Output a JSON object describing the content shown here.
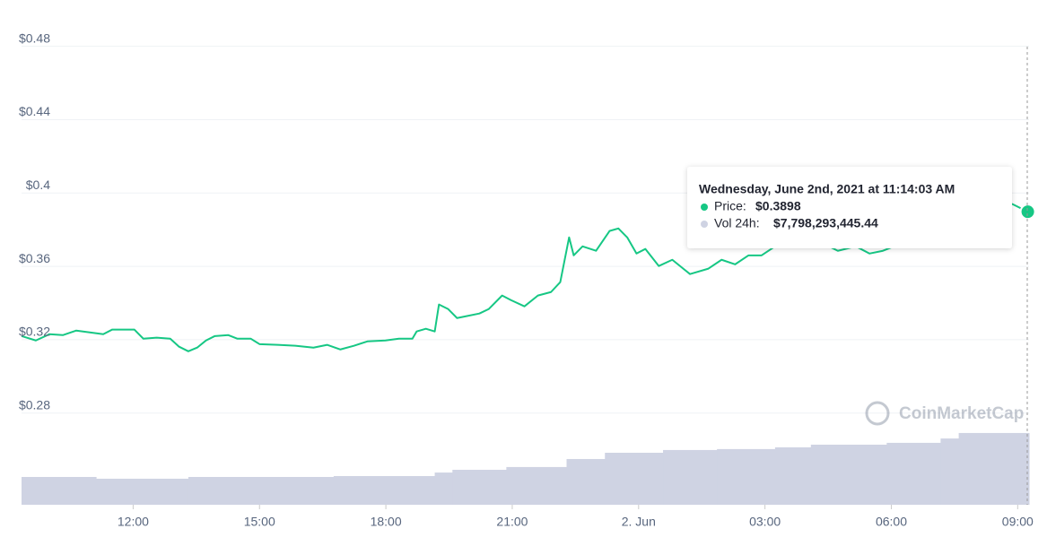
{
  "chart_data": {
    "type": "line",
    "series": [
      {
        "name": "Price",
        "color": "#16c784",
        "x": [
          9.35,
          9.69,
          10.01,
          10.33,
          10.65,
          10.97,
          11.29,
          11.5,
          11.82,
          12.03,
          12.24,
          12.56,
          12.88,
          13.09,
          13.31,
          13.52,
          13.73,
          13.94,
          14.26,
          14.47,
          14.79,
          15.0,
          15.43,
          15.85,
          16.28,
          16.61,
          16.92,
          17.24,
          17.56,
          17.99,
          18.31,
          18.63,
          18.73,
          18.95,
          19.16,
          19.26,
          19.48,
          19.69,
          19.9,
          20.22,
          20.44,
          20.76,
          20.97,
          21.29,
          21.61,
          21.92,
          22.14,
          22.35,
          22.46,
          22.67,
          22.99,
          23.31,
          23.52,
          23.73,
          23.95,
          24.16,
          24.48,
          24.8,
          25.01,
          25.22,
          25.65,
          25.97,
          26.29,
          26.61,
          26.92,
          27.24,
          27.56,
          27.88,
          28.2,
          28.52,
          28.73,
          29.16,
          29.48,
          29.8,
          30.12,
          30.44,
          30.75,
          31.07,
          31.39,
          31.71,
          31.92,
          32.24,
          32.56,
          32.88,
          33.24
        ],
        "values": [
          0.322,
          0.3196,
          0.323,
          0.3225,
          0.325,
          0.324,
          0.323,
          0.3255,
          0.3255,
          0.3255,
          0.3206,
          0.3211,
          0.3206,
          0.3162,
          0.3137,
          0.3157,
          0.3196,
          0.322,
          0.3225,
          0.3206,
          0.3206,
          0.3176,
          0.3172,
          0.3167,
          0.3157,
          0.3172,
          0.3147,
          0.3167,
          0.3191,
          0.3196,
          0.3206,
          0.3206,
          0.3245,
          0.326,
          0.3245,
          0.3392,
          0.3367,
          0.3318,
          0.3328,
          0.3343,
          0.3367,
          0.3441,
          0.3416,
          0.3382,
          0.3441,
          0.346,
          0.3514,
          0.3758,
          0.366,
          0.3709,
          0.3685,
          0.3793,
          0.3807,
          0.3758,
          0.367,
          0.3695,
          0.3602,
          0.3636,
          0.3597,
          0.3558,
          0.3587,
          0.3636,
          0.3611,
          0.366,
          0.366,
          0.3709,
          0.3734,
          0.3734,
          0.3744,
          0.3709,
          0.3685,
          0.3709,
          0.367,
          0.3685,
          0.3714,
          0.3744,
          0.3793,
          0.3881,
          0.3954,
          0.3988,
          0.3954,
          0.393,
          0.3954,
          0.3939,
          0.3898
        ]
      },
      {
        "name": "Vol 24h",
        "color": "#cfd3e3",
        "axis": "y2",
        "x": [
          9.35,
          11.12,
          13.31,
          16.76,
          19.16,
          19.58,
          20.86,
          22.29,
          23.2,
          24.58,
          25.86,
          27.24,
          28.09,
          29.89,
          31.17,
          31.6
        ],
        "values": [
          3020000000,
          2830000000,
          3020000000,
          3120000000,
          3500000000,
          3800000000,
          4100000000,
          4970000000,
          5650000000,
          5950000000,
          6050000000,
          6240000000,
          6530000000,
          6730000000,
          7200000000,
          7798293445.44
        ]
      }
    ],
    "xlim": [
      9.35,
      33.27
    ],
    "xticks": [
      {
        "value": 12,
        "label": "12:00"
      },
      {
        "value": 15,
        "label": "15:00"
      },
      {
        "value": 18,
        "label": "18:00"
      },
      {
        "value": 21,
        "label": "21:00"
      },
      {
        "value": 24,
        "label": "2. Jun"
      },
      {
        "value": 27,
        "label": "03:00"
      },
      {
        "value": 30,
        "label": "06:00"
      },
      {
        "value": 33,
        "label": "09:00"
      }
    ],
    "ylim": [
      0.23,
      0.495
    ],
    "yticks": [
      {
        "value": 0.28,
        "label": "$0.28"
      },
      {
        "value": 0.32,
        "label": "$0.32"
      },
      {
        "value": 0.36,
        "label": "$0.36"
      },
      {
        "value": 0.4,
        "label": "$0.4"
      },
      {
        "value": 0.44,
        "label": "$0.44"
      },
      {
        "value": 0.48,
        "label": "$0.48"
      }
    ],
    "y2lim": [
      0,
      52800000000
    ],
    "grid": true,
    "watermark": "CoinMarketCap",
    "tooltip": {
      "title": "Wednesday, June 2nd, 2021 at 11:14:03 AM",
      "items": [
        {
          "label": "Price:",
          "value": "$0.3898"
        },
        {
          "label": "Vol 24h:",
          "value": "$7,798,293,445.44"
        }
      ]
    }
  }
}
